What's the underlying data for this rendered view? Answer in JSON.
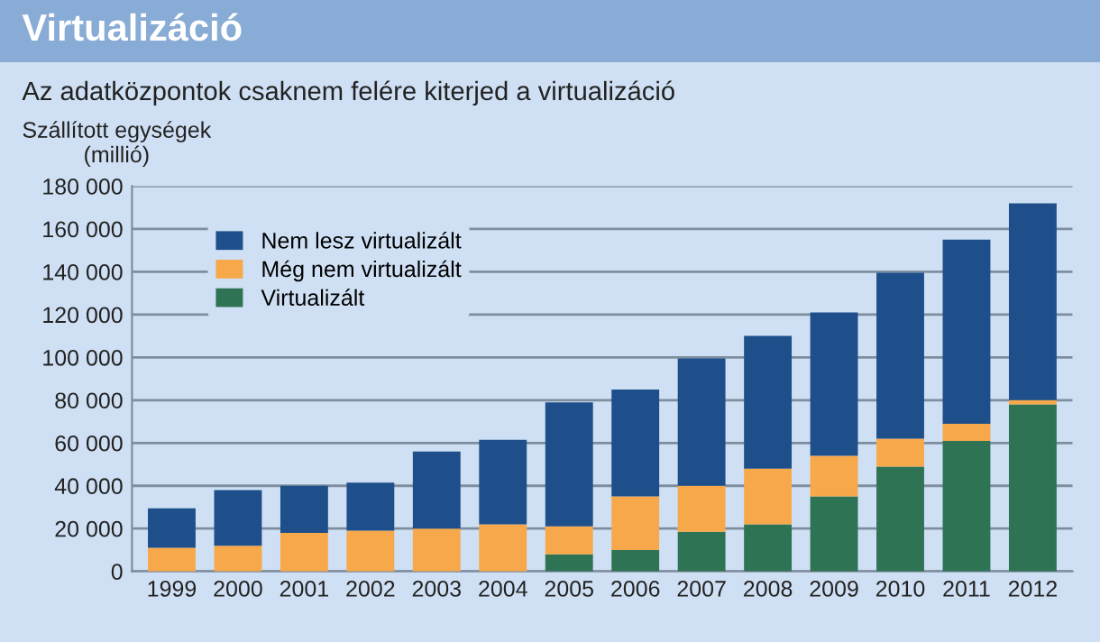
{
  "chart_data": {
    "type": "bar",
    "stacked": true,
    "title": "Virtualizáció",
    "subtitle": "Az adatközpontok csaknem felére kiterjed a virtualizáció",
    "ylabel": "Szállított egységek\n(millió)",
    "categories": [
      "1999",
      "2000",
      "2001",
      "2002",
      "2003",
      "2004",
      "2005",
      "2006",
      "2007",
      "2008",
      "2009",
      "2010",
      "2011",
      "2012"
    ],
    "series": [
      {
        "name": "Virtualizált",
        "color": "#2f7355",
        "values": [
          0,
          0,
          0,
          0,
          0,
          0,
          8000,
          10000,
          18500,
          22000,
          35000,
          49000,
          61000,
          78000
        ]
      },
      {
        "name": "Még nem virtualizált",
        "color": "#f7a84a",
        "values": [
          11000,
          12000,
          18000,
          19000,
          20000,
          22000,
          13000,
          25000,
          21500,
          26000,
          19000,
          13000,
          8000,
          2000
        ]
      },
      {
        "name": "Nem lesz virtualizált",
        "color": "#1f4f8a",
        "values": [
          18500,
          26000,
          22000,
          22500,
          36000,
          39500,
          58000,
          50000,
          59500,
          62000,
          67000,
          77500,
          86000,
          92000
        ]
      }
    ],
    "ylim": [
      0,
      180000
    ],
    "yticks": [
      {
        "value": 0,
        "label": "0"
      },
      {
        "value": 20000,
        "label": "20 000"
      },
      {
        "value": 40000,
        "label": "40 000"
      },
      {
        "value": 60000,
        "label": "60 000"
      },
      {
        "value": 80000,
        "label": "80 000"
      },
      {
        "value": 100000,
        "label": "100 000"
      },
      {
        "value": 120000,
        "label": "120 000"
      },
      {
        "value": 140000,
        "label": "140 000"
      },
      {
        "value": 160000,
        "label": "160 000"
      },
      {
        "value": 180000,
        "label": "180 000"
      }
    ],
    "grid": "y",
    "legend": "top left"
  }
}
